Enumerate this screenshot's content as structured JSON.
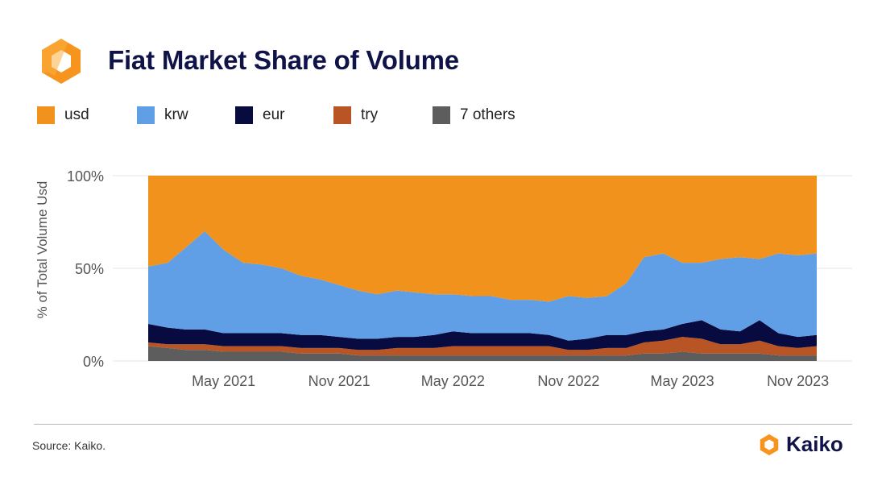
{
  "header": {
    "title": "Fiat Market Share of Volume"
  },
  "footer": {
    "source": "Source: Kaiko.",
    "brand": "Kaiko"
  },
  "colors": {
    "usd": "#f0921c",
    "krw": "#609ee6",
    "eur": "#070b3f",
    "try": "#b95424",
    "others": "#5d5d5d",
    "brand_navy": "#0f1347",
    "brand_orange": "#f7941d"
  },
  "icons": {
    "logo": "kaiko-hexagon-logo-icon"
  },
  "chart_data": {
    "type": "area",
    "stacked": true,
    "title": "Fiat Market Share of Volume",
    "ylabel": "% of Total Volume Usd",
    "xlabel": "",
    "ylim": [
      0,
      100
    ],
    "ytick_labels": [
      "0%",
      "50%",
      "100%"
    ],
    "x_tick_labels": [
      "May 2021",
      "Nov 2021",
      "May 2022",
      "Nov 2022",
      "May 2023",
      "Nov 2023"
    ],
    "x_tick_dates": [
      "2021-05-01",
      "2021-11-01",
      "2022-05-01",
      "2022-11-01",
      "2023-05-01",
      "2023-11-01"
    ],
    "x_range": [
      "2021-01-01",
      "2023-12-01"
    ],
    "grid": "horizontal",
    "legend_position": "top",
    "x": [
      "2021-01-01",
      "2021-02-01",
      "2021-03-01",
      "2021-04-01",
      "2021-05-01",
      "2021-06-01",
      "2021-07-01",
      "2021-08-01",
      "2021-09-01",
      "2021-10-01",
      "2021-11-01",
      "2021-12-01",
      "2022-01-01",
      "2022-02-01",
      "2022-03-01",
      "2022-04-01",
      "2022-05-01",
      "2022-06-01",
      "2022-07-01",
      "2022-08-01",
      "2022-09-01",
      "2022-10-01",
      "2022-11-01",
      "2022-12-01",
      "2023-01-01",
      "2023-02-01",
      "2023-03-01",
      "2023-04-01",
      "2023-05-01",
      "2023-06-01",
      "2023-07-01",
      "2023-08-01",
      "2023-09-01",
      "2023-10-01",
      "2023-11-01",
      "2023-12-01"
    ],
    "series": [
      {
        "name": "7 others",
        "key": "others",
        "values": [
          8,
          7,
          6,
          6,
          5,
          5,
          5,
          5,
          4,
          4,
          4,
          3,
          3,
          3,
          3,
          3,
          3,
          3,
          3,
          3,
          3,
          3,
          3,
          3,
          3,
          3,
          4,
          4,
          5,
          4,
          4,
          4,
          4,
          3,
          3,
          3
        ]
      },
      {
        "name": "try",
        "key": "try",
        "values": [
          2,
          2,
          3,
          3,
          3,
          3,
          3,
          3,
          3,
          3,
          3,
          3,
          3,
          4,
          4,
          4,
          5,
          5,
          5,
          5,
          5,
          5,
          3,
          3,
          4,
          4,
          6,
          7,
          8,
          8,
          5,
          5,
          7,
          5,
          4,
          5
        ]
      },
      {
        "name": "eur",
        "key": "eur",
        "values": [
          10,
          9,
          8,
          8,
          7,
          7,
          7,
          7,
          7,
          7,
          6,
          6,
          6,
          6,
          6,
          7,
          8,
          7,
          7,
          7,
          7,
          6,
          5,
          6,
          7,
          7,
          6,
          6,
          7,
          10,
          8,
          7,
          11,
          7,
          6,
          6
        ]
      },
      {
        "name": "krw",
        "key": "krw",
        "values": [
          31,
          35,
          44,
          53,
          45,
          38,
          37,
          35,
          32,
          30,
          28,
          26,
          24,
          25,
          24,
          22,
          20,
          20,
          20,
          18,
          18,
          18,
          24,
          22,
          21,
          28,
          40,
          41,
          33,
          31,
          38,
          40,
          33,
          43,
          44,
          44
        ]
      },
      {
        "name": "usd",
        "key": "usd",
        "values": [
          49,
          47,
          39,
          30,
          40,
          47,
          48,
          50,
          54,
          56,
          59,
          62,
          64,
          62,
          63,
          64,
          64,
          65,
          65,
          67,
          67,
          68,
          65,
          66,
          65,
          58,
          44,
          42,
          47,
          47,
          45,
          44,
          45,
          42,
          43,
          42
        ]
      }
    ]
  }
}
